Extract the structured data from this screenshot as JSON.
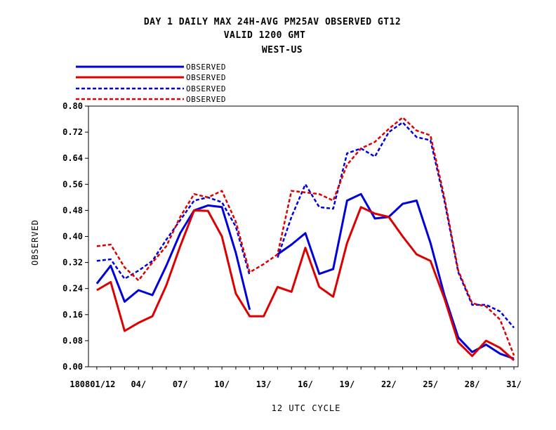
{
  "chart_data": {
    "type": "line",
    "title_lines": [
      "DAY 1 DAILY MAX   24H-AVG PM25AV OBSERVED GT12",
      "VALID 1200 GMT",
      "WEST-US"
    ],
    "xlabel": "12 UTC CYCLE",
    "ylabel": "OBSERVED",
    "ylim": [
      0,
      0.8
    ],
    "yticks": [
      "0.00",
      "0.08",
      "0.16",
      "0.24",
      "0.32",
      "0.40",
      "0.48",
      "0.56",
      "0.64",
      "0.72",
      "0.80"
    ],
    "x_first_label": "180801/12",
    "xticks": [
      {
        "day": 1,
        "label": "180801/12"
      },
      {
        "day": 4,
        "label": "04/"
      },
      {
        "day": 7,
        "label": "07/"
      },
      {
        "day": 10,
        "label": "10/"
      },
      {
        "day": 13,
        "label": "13/"
      },
      {
        "day": 16,
        "label": "16/"
      },
      {
        "day": 19,
        "label": "19/"
      },
      {
        "day": 22,
        "label": "22/"
      },
      {
        "day": 25,
        "label": "25/"
      },
      {
        "day": 28,
        "label": "28/"
      },
      {
        "day": 31,
        "label": "31/"
      }
    ],
    "x": [
      1,
      2,
      3,
      4,
      5,
      6,
      7,
      8,
      9,
      10,
      11,
      12,
      13,
      14,
      15,
      16,
      17,
      18,
      19,
      20,
      21,
      22,
      23,
      24,
      25,
      26,
      27,
      28,
      29,
      30,
      31
    ],
    "legend_position": "top-left, above plot",
    "series": [
      {
        "name": "OBSERVED",
        "color": "#0000dd",
        "dash": "solid",
        "values": [
          0.255,
          0.31,
          0.2,
          0.235,
          0.22,
          0.31,
          0.41,
          0.48,
          0.495,
          0.49,
          0.35,
          0.175,
          null,
          0.345,
          0.375,
          0.41,
          0.285,
          0.3,
          0.51,
          0.53,
          0.455,
          0.46,
          0.5,
          0.51,
          0.38,
          0.22,
          0.09,
          0.045,
          0.068,
          0.04,
          0.025
        ]
      },
      {
        "name": "OBSERVED",
        "color": "#dd0000",
        "dash": "solid",
        "values": [
          0.235,
          0.26,
          0.11,
          0.135,
          0.155,
          0.25,
          0.37,
          0.48,
          0.478,
          0.4,
          0.225,
          0.155,
          0.155,
          0.245,
          0.23,
          0.365,
          0.245,
          0.215,
          0.38,
          0.49,
          0.47,
          0.46,
          0.4,
          0.345,
          0.325,
          0.21,
          0.075,
          0.033,
          0.08,
          0.058,
          0.02
        ]
      },
      {
        "name": "OBSERVED",
        "color": "#0000dd",
        "dash": "dashed",
        "values": [
          0.325,
          0.33,
          0.27,
          0.295,
          0.325,
          0.39,
          0.45,
          0.51,
          0.52,
          0.505,
          0.43,
          0.28,
          null,
          0.335,
          0.46,
          0.56,
          0.49,
          0.485,
          0.655,
          0.67,
          0.645,
          0.72,
          0.75,
          0.705,
          0.695,
          0.51,
          0.29,
          0.19,
          0.19,
          0.17,
          0.12
        ]
      },
      {
        "name": "OBSERVED",
        "color": "#dd0000",
        "dash": "dashed",
        "values": [
          0.37,
          0.375,
          0.305,
          0.265,
          0.32,
          0.37,
          0.46,
          0.53,
          0.52,
          0.54,
          0.445,
          0.29,
          0.315,
          0.345,
          0.54,
          0.535,
          0.53,
          0.51,
          0.62,
          0.67,
          0.69,
          0.73,
          0.765,
          0.725,
          0.71,
          0.52,
          0.295,
          0.195,
          0.185,
          0.145,
          0.035
        ]
      }
    ]
  }
}
